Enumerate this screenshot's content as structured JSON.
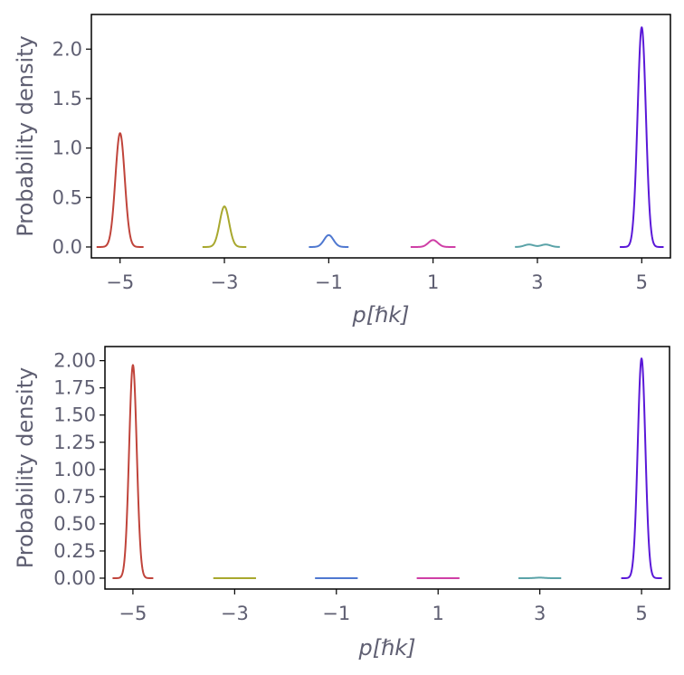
{
  "chart_data": [
    {
      "type": "line",
      "xlabel": "p[ℏk]",
      "ylabel": "Probability density",
      "xlim": [
        -5.55,
        5.55
      ],
      "ylim": [
        -0.11,
        2.35
      ],
      "xticks": [
        -5,
        -3,
        -1,
        1,
        3,
        5
      ],
      "xtick_labels": [
        "−5",
        "−3",
        "−1",
        "1",
        "3",
        "5"
      ],
      "yticks": [
        0,
        0.5,
        1,
        1.5,
        2
      ],
      "ytick_labels": [
        "0.0",
        "0.5",
        "1.0",
        "1.5",
        "2.0"
      ],
      "grid": false,
      "series": [
        {
          "center": -5,
          "peak": 1.15,
          "width": 0.09,
          "range": [
            -5.45,
            -4.55
          ],
          "color": "#c0443b"
        },
        {
          "center": -3,
          "peak": 0.41,
          "width": 0.09,
          "range": [
            -3.42,
            -2.58
          ],
          "color": "#a8a82e"
        },
        {
          "center": -1,
          "peak": 0.12,
          "width": 0.09,
          "range": [
            -1.38,
            -0.62
          ],
          "color": "#4f78d0"
        },
        {
          "center": 1,
          "peak": 0.07,
          "width": 0.09,
          "range": [
            0.57,
            1.43
          ],
          "color": "#cf3fa6"
        },
        {
          "center": 3,
          "peak": 0.025,
          "width": 0.09,
          "range": [
            2.57,
            3.43
          ],
          "color": "#5aa3a8",
          "bimodal": true
        },
        {
          "center": 5,
          "peak": 2.22,
          "width": 0.08,
          "range": [
            4.58,
            5.42
          ],
          "color": "#5a18d8"
        }
      ]
    },
    {
      "type": "line",
      "xlabel": "p[ℏk]",
      "ylabel": "Probability density",
      "xlim": [
        -5.55,
        5.55
      ],
      "ylim": [
        -0.1,
        2.13
      ],
      "xticks": [
        -5,
        -3,
        -1,
        1,
        3,
        5
      ],
      "xtick_labels": [
        "−5",
        "−3",
        "−1",
        "1",
        "3",
        "5"
      ],
      "yticks": [
        0,
        0.25,
        0.5,
        0.75,
        1,
        1.25,
        1.5,
        1.75,
        2
      ],
      "ytick_labels": [
        "0.00",
        "0.25",
        "0.50",
        "0.75",
        "1.00",
        "1.25",
        "1.50",
        "1.75",
        "2.00"
      ],
      "grid": false,
      "series": [
        {
          "center": -5,
          "peak": 1.96,
          "width": 0.075,
          "range": [
            -5.4,
            -4.6
          ],
          "color": "#c0443b"
        },
        {
          "center": -3,
          "peak": 0.0,
          "width": 0.09,
          "range": [
            -3.42,
            -2.58
          ],
          "color": "#a8a82e"
        },
        {
          "center": -1,
          "peak": 0.0,
          "width": 0.09,
          "range": [
            -1.42,
            -0.58
          ],
          "color": "#4f78d0"
        },
        {
          "center": 1,
          "peak": 0.0,
          "width": 0.09,
          "range": [
            0.58,
            1.42
          ],
          "color": "#cf3fa6"
        },
        {
          "center": 3,
          "peak": 0.005,
          "width": 0.09,
          "range": [
            2.58,
            3.42
          ],
          "color": "#5aa3a8"
        },
        {
          "center": 5,
          "peak": 2.02,
          "width": 0.075,
          "range": [
            4.6,
            5.4
          ],
          "color": "#5a18d8"
        }
      ]
    }
  ]
}
